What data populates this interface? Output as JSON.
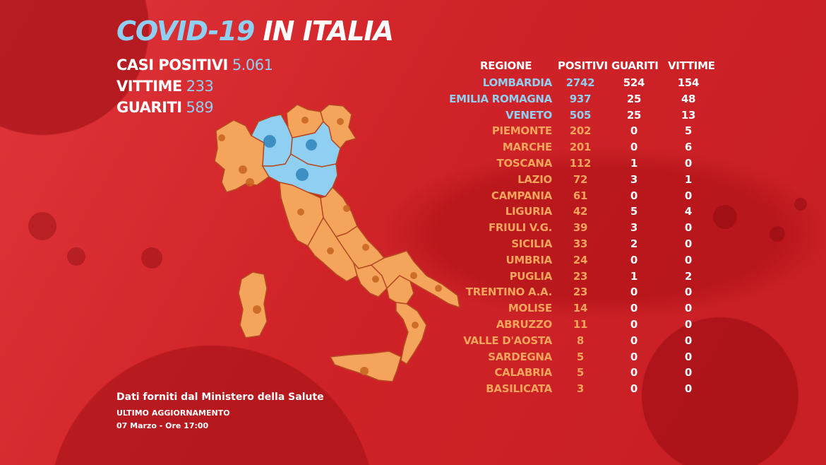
{
  "title": {
    "part1": "COVID-19",
    "part2": "IN ITALIA"
  },
  "summary": [
    {
      "label": "CASI POSITIVI",
      "value": "5.061"
    },
    {
      "label": "VITTIME",
      "value": "233"
    },
    {
      "label": "GUARITI",
      "value": "589"
    }
  ],
  "table": {
    "headers": [
      "REGIONE",
      "POSITIVI",
      "GUARITI",
      "VITTIME"
    ],
    "rows": [
      {
        "regione": "LOMBARDIA",
        "positivi": "2742",
        "guariti": "524",
        "vittime": "154",
        "highlight": true
      },
      {
        "regione": "EMILIA ROMAGNA",
        "positivi": "937",
        "guariti": "25",
        "vittime": "48",
        "highlight": true
      },
      {
        "regione": "VENETO",
        "positivi": "505",
        "guariti": "25",
        "vittime": "13",
        "highlight": true
      },
      {
        "regione": "PIEMONTE",
        "positivi": "202",
        "guariti": "0",
        "vittime": "5",
        "highlight": false
      },
      {
        "regione": "MARCHE",
        "positivi": "201",
        "guariti": "0",
        "vittime": "6",
        "highlight": false
      },
      {
        "regione": "TOSCANA",
        "positivi": "112",
        "guariti": "1",
        "vittime": "0",
        "highlight": false
      },
      {
        "regione": "LAZIO",
        "positivi": "72",
        "guariti": "3",
        "vittime": "1",
        "highlight": false
      },
      {
        "regione": "CAMPANIA",
        "positivi": "61",
        "guariti": "0",
        "vittime": "0",
        "highlight": false
      },
      {
        "regione": "LIGURIA",
        "positivi": "42",
        "guariti": "5",
        "vittime": "4",
        "highlight": false
      },
      {
        "regione": "FRIULI V.G.",
        "positivi": "39",
        "guariti": "3",
        "vittime": "0",
        "highlight": false
      },
      {
        "regione": "SICILIA",
        "positivi": "33",
        "guariti": "2",
        "vittime": "0",
        "highlight": false
      },
      {
        "regione": "UMBRIA",
        "positivi": "24",
        "guariti": "0",
        "vittime": "0",
        "highlight": false
      },
      {
        "regione": "PUGLIA",
        "positivi": "23",
        "guariti": "1",
        "vittime": "2",
        "highlight": false
      },
      {
        "regione": "TRENTINO A.A.",
        "positivi": "23",
        "guariti": "0",
        "vittime": "0",
        "highlight": false
      },
      {
        "regione": "MOLISE",
        "positivi": "14",
        "guariti": "0",
        "vittime": "0",
        "highlight": false
      },
      {
        "regione": "ABRUZZO",
        "positivi": "11",
        "guariti": "0",
        "vittime": "0",
        "highlight": false
      },
      {
        "regione": "VALLE D'AOSTA",
        "positivi": "8",
        "guariti": "0",
        "vittime": "0",
        "highlight": false
      },
      {
        "regione": "SARDEGNA",
        "positivi": "5",
        "guariti": "0",
        "vittime": "0",
        "highlight": false
      },
      {
        "regione": "CALABRIA",
        "positivi": "5",
        "guariti": "0",
        "vittime": "0",
        "highlight": false
      },
      {
        "regione": "BASILICATA",
        "positivi": "3",
        "guariti": "0",
        "vittime": "0",
        "highlight": false
      }
    ]
  },
  "footer": {
    "source": "Dati forniti dal Ministero della Salute",
    "update_label": "ULTIMO AGGIORNAMENTO",
    "update_time": "07 Marzo - Ore 17:00"
  },
  "colors": {
    "background": "#d3262b",
    "accent_blue": "#8fd0f2",
    "region_orange": "#f5a45c",
    "map_blue": "#8fd0f2"
  },
  "map": {
    "highlighted_regions": [
      "Lombardia",
      "Emilia Romagna",
      "Veneto"
    ],
    "virus_icon": "virus-icon"
  }
}
